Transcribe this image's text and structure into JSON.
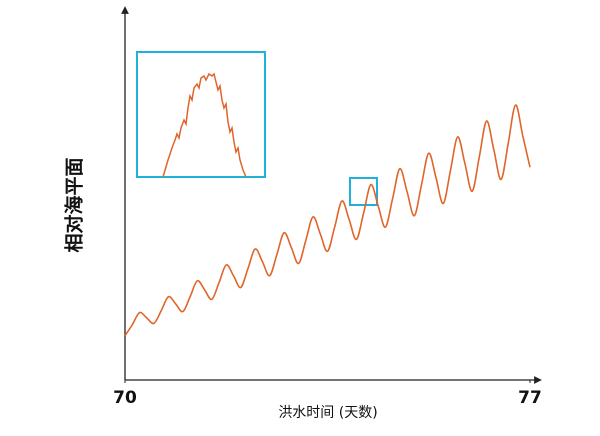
{
  "chart_data": {
    "type": "line",
    "x_label": "洪水时间 (天数)",
    "y_label": "相对海平面",
    "x": [
      70,
      70.125,
      70.25,
      70.375,
      70.5,
      70.625,
      70.75,
      70.875,
      71,
      71.125,
      71.25,
      71.375,
      71.5,
      71.625,
      71.75,
      71.875,
      72,
      72.125,
      72.25,
      72.375,
      72.5,
      72.625,
      72.75,
      72.875,
      73,
      73.125,
      73.25,
      73.375,
      73.5,
      73.625,
      73.75,
      73.875,
      74,
      74.125,
      74.25,
      74.375,
      74.5,
      74.625,
      74.75,
      74.875,
      75,
      75.125,
      75.25,
      75.375,
      75.5,
      75.625,
      75.75,
      75.875,
      76,
      76.125,
      76.25,
      76.375,
      76.5,
      76.625,
      76.75,
      76.875,
      77
    ],
    "series": [
      {
        "color": "#e0652a",
        "values": [
          12,
          14.9,
          18.2,
          16.8,
          15.3,
          18.7,
          22.5,
          20.6,
          18.5,
          22.5,
          26.8,
          24.4,
          21.8,
          26.3,
          31.1,
          28.2,
          25,
          30.1,
          35.4,
          32,
          28.2,
          33.9,
          39.8,
          35.8,
          31.5,
          37.7,
          44.1,
          39.5,
          34.8,
          41.4,
          48.4,
          43.3,
          38,
          45.2,
          52.8,
          47.1,
          41.3,
          49,
          57.1,
          50.9,
          44.4,
          52.8,
          61.3,
          54.7,
          47.7,
          56.6,
          65.7,
          58.5,
          51,
          60.4,
          70,
          62.2,
          54.2,
          64.1,
          74.3,
          66,
          57.5
        ]
      }
    ],
    "xlim": [
      70,
      77
    ],
    "xticks": [
      70,
      77
    ],
    "ylim": [
      0,
      100
    ]
  }
}
